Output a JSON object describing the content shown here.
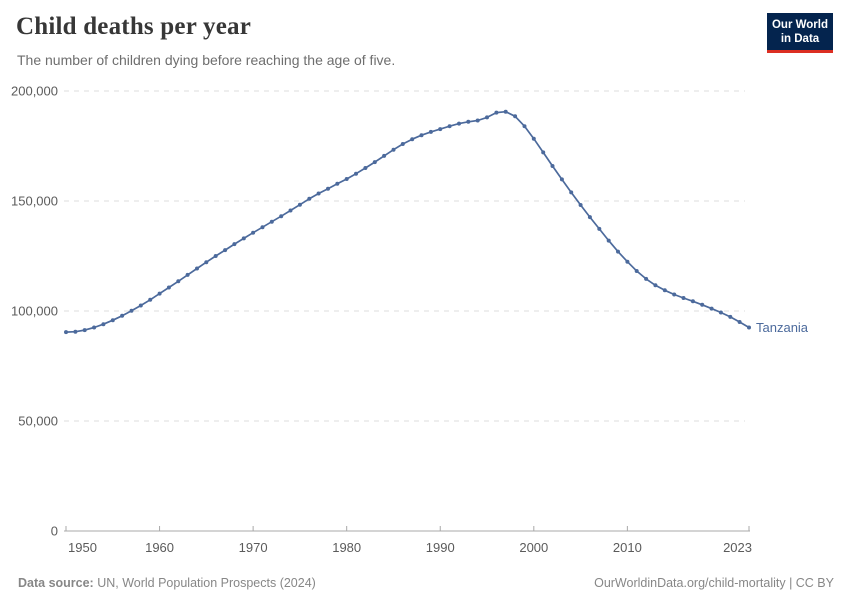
{
  "header": {
    "title": "Child deaths per year",
    "subtitle": "The number of children dying before reaching the age of five.",
    "logo_line1": "Our World",
    "logo_line2": "in Data"
  },
  "footer": {
    "source_label": "Data source:",
    "source_text": " UN, World Population Prospects (2024)",
    "credit": "OurWorldinData.org/child-mortality | CC BY"
  },
  "colors": {
    "line": "#4c6a9c",
    "grid": "#dedede",
    "axis": "#a8a8a8",
    "tick_label": "#5b5b5b",
    "logo_bg": "#04244e",
    "logo_red": "#dc2e22"
  },
  "chart_data": {
    "type": "line",
    "title": "Child deaths per year",
    "subtitle": "The number of children dying before reaching the age of five.",
    "series_label": "Tanzania",
    "xlabel": "",
    "ylabel": "",
    "xlim": [
      1950,
      2023
    ],
    "ylim": [
      0,
      200000
    ],
    "xticks": [
      1950,
      1960,
      1970,
      1980,
      1990,
      2000,
      2010,
      2023
    ],
    "yticks": [
      0,
      50000,
      100000,
      150000,
      200000
    ],
    "grid": "horizontal-dashed",
    "legend_position": "end-of-line",
    "x": [
      1950,
      1951,
      1952,
      1953,
      1954,
      1955,
      1956,
      1957,
      1958,
      1959,
      1960,
      1961,
      1962,
      1963,
      1964,
      1965,
      1966,
      1967,
      1968,
      1969,
      1970,
      1971,
      1972,
      1973,
      1974,
      1975,
      1976,
      1977,
      1978,
      1979,
      1980,
      1981,
      1982,
      1983,
      1984,
      1985,
      1986,
      1987,
      1988,
      1989,
      1990,
      1991,
      1992,
      1993,
      1994,
      1995,
      1996,
      1997,
      1998,
      1999,
      2000,
      2001,
      2002,
      2003,
      2004,
      2005,
      2006,
      2007,
      2008,
      2009,
      2010,
      2011,
      2012,
      2013,
      2014,
      2015,
      2016,
      2017,
      2018,
      2019,
      2020,
      2021,
      2022,
      2023
    ],
    "values": [
      90400,
      90600,
      91300,
      92500,
      94000,
      95800,
      97800,
      100100,
      102500,
      105100,
      107900,
      110700,
      113500,
      116400,
      119300,
      122200,
      125000,
      127700,
      130400,
      133000,
      135600,
      138100,
      140600,
      143100,
      145700,
      148300,
      151000,
      153400,
      155600,
      157800,
      160000,
      162400,
      165000,
      167700,
      170500,
      173300,
      175900,
      178100,
      179900,
      181400,
      182700,
      184000,
      185200,
      186000,
      186600,
      188000,
      190200,
      190600,
      188500,
      184000,
      178300,
      172100,
      165900,
      159800,
      153900,
      148200,
      142700,
      137300,
      132000,
      127000,
      122400,
      118200,
      114600,
      111700,
      109400,
      107500,
      105900,
      104400,
      102800,
      101100,
      99300,
      97300,
      95000,
      92500
    ]
  }
}
